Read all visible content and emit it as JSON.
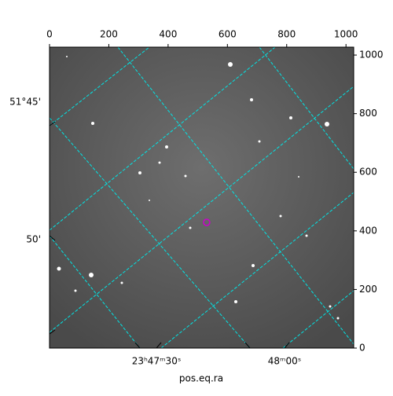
{
  "chart_data": {
    "type": "image",
    "xlabel": "pos.eq.ra",
    "xlim": [
      0,
      1026
    ],
    "ylim": [
      0,
      1027
    ],
    "xticks": [
      0,
      200,
      400,
      600,
      800,
      1000
    ],
    "yticks": [
      0,
      200,
      400,
      600,
      800,
      1000
    ],
    "ra_ticks": [
      "23ʰ47ᵐ30ˢ",
      "48ᵐ00ˢ"
    ],
    "dec_ticks": [
      "51°45'",
      "50'"
    ],
    "marker": {
      "x": 530,
      "y": 429,
      "color": "#cc00cc"
    }
  }
}
